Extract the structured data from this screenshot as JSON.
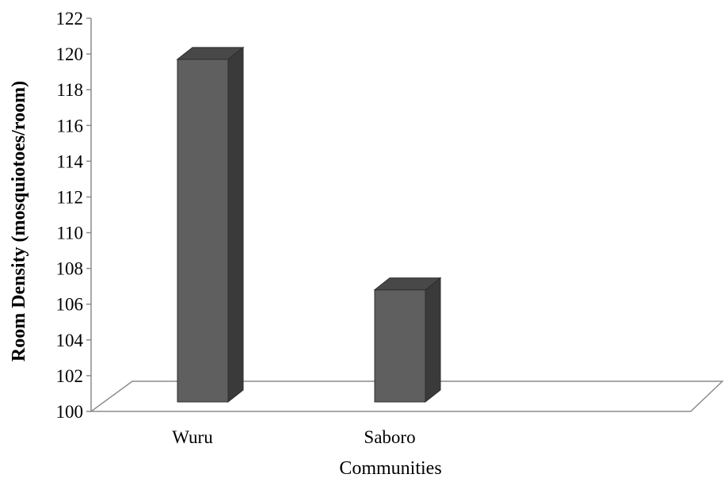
{
  "chart_data": {
    "type": "bar",
    "title": "",
    "xlabel": "Communities",
    "ylabel": "Room Density (mosquiotoes/room)",
    "categories": [
      "Wuru",
      "Saboro"
    ],
    "values": [
      120.5,
      107.6
    ],
    "ylim": [
      100,
      122
    ],
    "yticks": [
      100,
      102,
      104,
      106,
      108,
      110,
      112,
      114,
      116,
      118,
      120,
      122
    ],
    "grid": false,
    "legend": "none",
    "three_d": true
  },
  "colors": {
    "bar_front": "#5f5f5f",
    "bar_side": "#3a3a3a",
    "bar_top": "#484848",
    "floor_edge": "#8c8c8c",
    "axis": "#8c8c8c"
  }
}
